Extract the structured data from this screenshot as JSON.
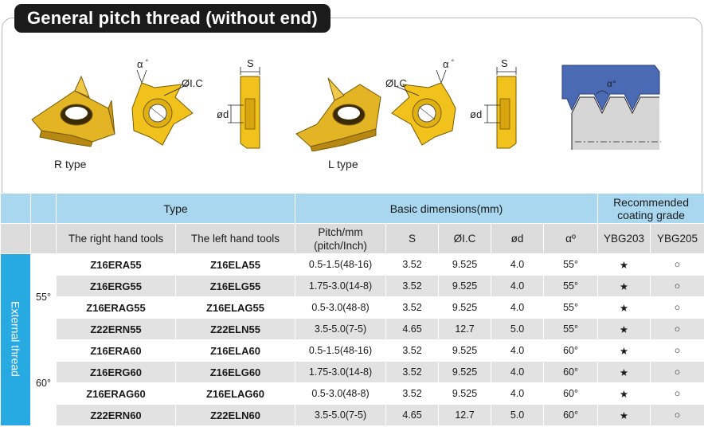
{
  "title": "General pitch thread (without end)",
  "figures": {
    "r_type_label": "R type",
    "l_type_label": "L type",
    "alpha": "α",
    "degree": "°",
    "ic": "ØI.C",
    "s": "S",
    "d": "ød",
    "profile_angle": "α°"
  },
  "table": {
    "head1": {
      "type": "Type",
      "basic": "Basic dimensions(mm)",
      "coating_line1": "Recommended",
      "coating_line2": "coating grade"
    },
    "head2": {
      "right": "The right hand tools",
      "left": "The left hand tools",
      "pitch_line1": "Pitch/mm",
      "pitch_line2": "(pitch/Inch)",
      "s": "S",
      "ic": "ØI.C",
      "d": "ød",
      "alpha": "αº",
      "grade1": "YBG203",
      "grade2": "YBG205"
    },
    "side_label": "External thread",
    "groups": [
      {
        "angle": "55°",
        "rows": [
          {
            "right": "Z16ERA55",
            "left": "Z16ELA55",
            "pitch": "0.5-1.5(48-16)",
            "s": "3.52",
            "ic": "9.525",
            "d": "4.0",
            "alpha": "55°",
            "g1": "★",
            "g2": "○"
          },
          {
            "right": "Z16ERG55",
            "left": "Z16ELG55",
            "pitch": "1.75-3.0(14-8)",
            "s": "3.52",
            "ic": "9.525",
            "d": "4.0",
            "alpha": "55°",
            "g1": "★",
            "g2": "○"
          },
          {
            "right": "Z16ERAG55",
            "left": "Z16ELAG55",
            "pitch": "0.5-3.0(48-8)",
            "s": "3.52",
            "ic": "9.525",
            "d": "4.0",
            "alpha": "55°",
            "g1": "★",
            "g2": "○"
          },
          {
            "right": "Z22ERN55",
            "left": "Z22ELN55",
            "pitch": "3.5-5.0(7-5)",
            "s": "4.65",
            "ic": "12.7",
            "d": "5.0",
            "alpha": "55°",
            "g1": "★",
            "g2": "○"
          }
        ]
      },
      {
        "angle": "60°",
        "rows": [
          {
            "right": "Z16ERA60",
            "left": "Z16ELA60",
            "pitch": "0.5-1.5(48-16)",
            "s": "3.52",
            "ic": "9.525",
            "d": "4.0",
            "alpha": "60°",
            "g1": "★",
            "g2": "○"
          },
          {
            "right": "Z16ERG60",
            "left": "Z16ELG60",
            "pitch": "1.75-3.0(14-8)",
            "s": "3.52",
            "ic": "9.525",
            "d": "4.0",
            "alpha": "60°",
            "g1": "★",
            "g2": "○"
          },
          {
            "right": "Z16ERAG60",
            "left": "Z16ELAG60",
            "pitch": "0.5-3.0(48-8)",
            "s": "3.52",
            "ic": "9.525",
            "d": "4.0",
            "alpha": "60°",
            "g1": "★",
            "g2": "○"
          },
          {
            "right": "Z22ERN60",
            "left": "Z22ELN60",
            "pitch": "3.5-5.0(7-5)",
            "s": "4.65",
            "ic": "12.7",
            "d": "5.0",
            "alpha": "60°",
            "g1": "★",
            "g2": "○"
          }
        ]
      }
    ]
  }
}
